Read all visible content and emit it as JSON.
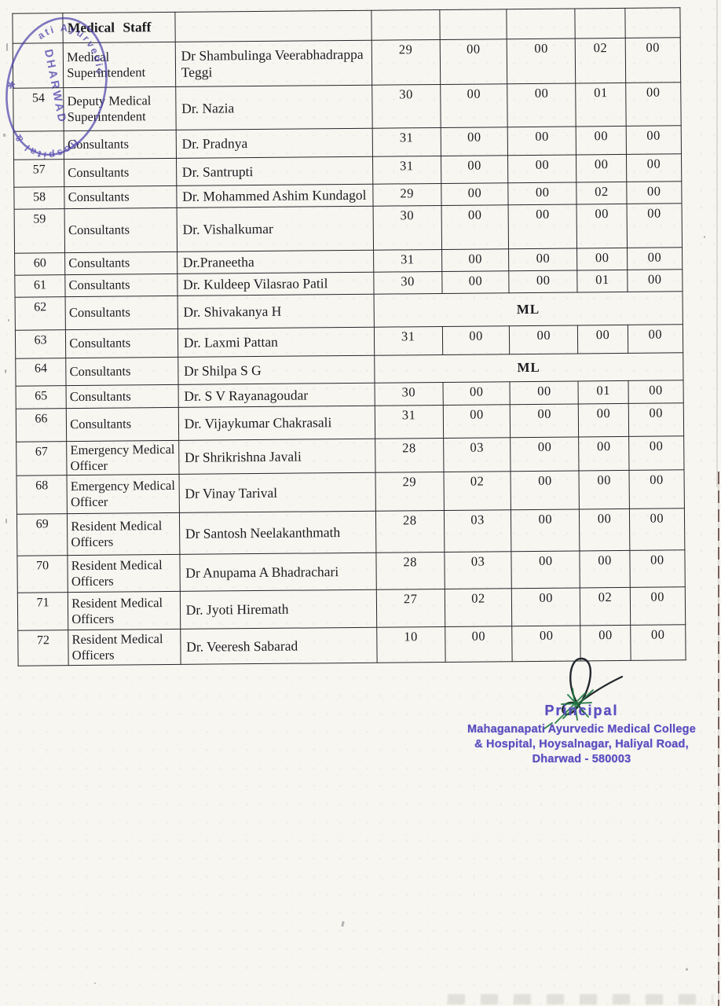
{
  "table": {
    "header": {
      "staff_group": "Medical Staff"
    },
    "rows": [
      {
        "sl": "",
        "designation": "Medical Superintendent",
        "name": "Dr Shambulinga Veerabhadrappa Teggi",
        "values": [
          "29",
          "00",
          "00",
          "02",
          "00"
        ]
      },
      {
        "sl": "54",
        "designation": "Deputy Medical Superintendent",
        "name": "Dr. Nazia",
        "values": [
          "30",
          "00",
          "00",
          "01",
          "00"
        ]
      },
      {
        "sl": "",
        "designation": "Consultants",
        "name": "Dr. Pradnya",
        "values": [
          "31",
          "00",
          "00",
          "00",
          "00"
        ]
      },
      {
        "sl": "57",
        "designation": "Consultants",
        "name": "Dr. Santrupti",
        "values": [
          "31",
          "00",
          "00",
          "00",
          "00"
        ]
      },
      {
        "sl": "58",
        "designation": "Consultants",
        "name": "Dr. Mohammed Ashim Kundagol",
        "values": [
          "29",
          "00",
          "00",
          "02",
          "00"
        ]
      },
      {
        "sl": "59",
        "designation": "Consultants",
        "name": "Dr. Vishalkumar",
        "values": [
          "30",
          "00",
          "00",
          "00",
          "00"
        ]
      },
      {
        "sl": "60",
        "designation": "Consultants",
        "name": "Dr.Praneetha",
        "values": [
          "31",
          "00",
          "00",
          "00",
          "00"
        ]
      },
      {
        "sl": "61",
        "designation": "Consultants",
        "name": "Dr. Kuldeep Vilasrao Patil",
        "values": [
          "30",
          "00",
          "00",
          "01",
          "00"
        ]
      },
      {
        "sl": "62",
        "designation": "Consultants",
        "name": "Dr. Shivakanya H",
        "merged": "ML"
      },
      {
        "sl": "63",
        "designation": "Consultants",
        "name": "Dr. Laxmi Pattan",
        "values": [
          "31",
          "00",
          "00",
          "00",
          "00"
        ]
      },
      {
        "sl": "64",
        "designation": "Consultants",
        "name": "Dr Shilpa S G",
        "merged": "ML"
      },
      {
        "sl": "65",
        "designation": "Consultants",
        "name": "Dr. S V Rayanagoudar",
        "values": [
          "30",
          "00",
          "00",
          "01",
          "00"
        ]
      },
      {
        "sl": "66",
        "designation": "Consultants",
        "name": "Dr. Vijaykumar Chakrasali",
        "values": [
          "31",
          "00",
          "00",
          "00",
          "00"
        ]
      },
      {
        "sl": "67",
        "designation": "Emergency Medical Officer",
        "name": "Dr Shrikrishna Javali",
        "values": [
          "28",
          "03",
          "00",
          "00",
          "00"
        ]
      },
      {
        "sl": "68",
        "designation": "Emergency Medical Officer",
        "name": "Dr Vinay Tarival",
        "values": [
          "29",
          "02",
          "00",
          "00",
          "00"
        ]
      },
      {
        "sl": "69",
        "designation": "Resident Medical Officers",
        "name": "Dr Santosh Neelakanthmath",
        "values": [
          "28",
          "03",
          "00",
          "00",
          "00"
        ]
      },
      {
        "sl": "70",
        "designation": "Resident Medical Officers",
        "name": "Dr Anupama A Bhadrachari",
        "values": [
          "28",
          "03",
          "00",
          "00",
          "00"
        ]
      },
      {
        "sl": "71",
        "designation": "Resident Medical Officers",
        "name": "Dr. Jyoti Hiremath",
        "values": [
          "27",
          "02",
          "00",
          "02",
          "00"
        ]
      },
      {
        "sl": "72",
        "designation": "Resident Medical Officers",
        "name": "Dr. Veeresh Sabarad",
        "values": [
          "10",
          "00",
          "00",
          "00",
          "00"
        ]
      }
    ]
  },
  "corner_stamp": {
    "arc_top": "ati Ayurvedic",
    "center": "DHARWAD",
    "arc_bottom": "Hospital &",
    "star": "✱"
  },
  "signature": {
    "title": "Principal",
    "org_line1": "Mahaganapati Ayurvedic Medical College",
    "org_line2": "& Hospital, Hoysalnagar, Haliyal Road,",
    "org_line3": "Dharwad - 580003"
  },
  "colors": {
    "table_line": "#26262a",
    "text_ink": "#1c1c20",
    "stamp_purple": "#4338a8",
    "stamp_text_purple": "#5b4fc0",
    "signature_ink": "#23282e",
    "signature_green": "#217a41",
    "paper": "#f7f6f1"
  }
}
